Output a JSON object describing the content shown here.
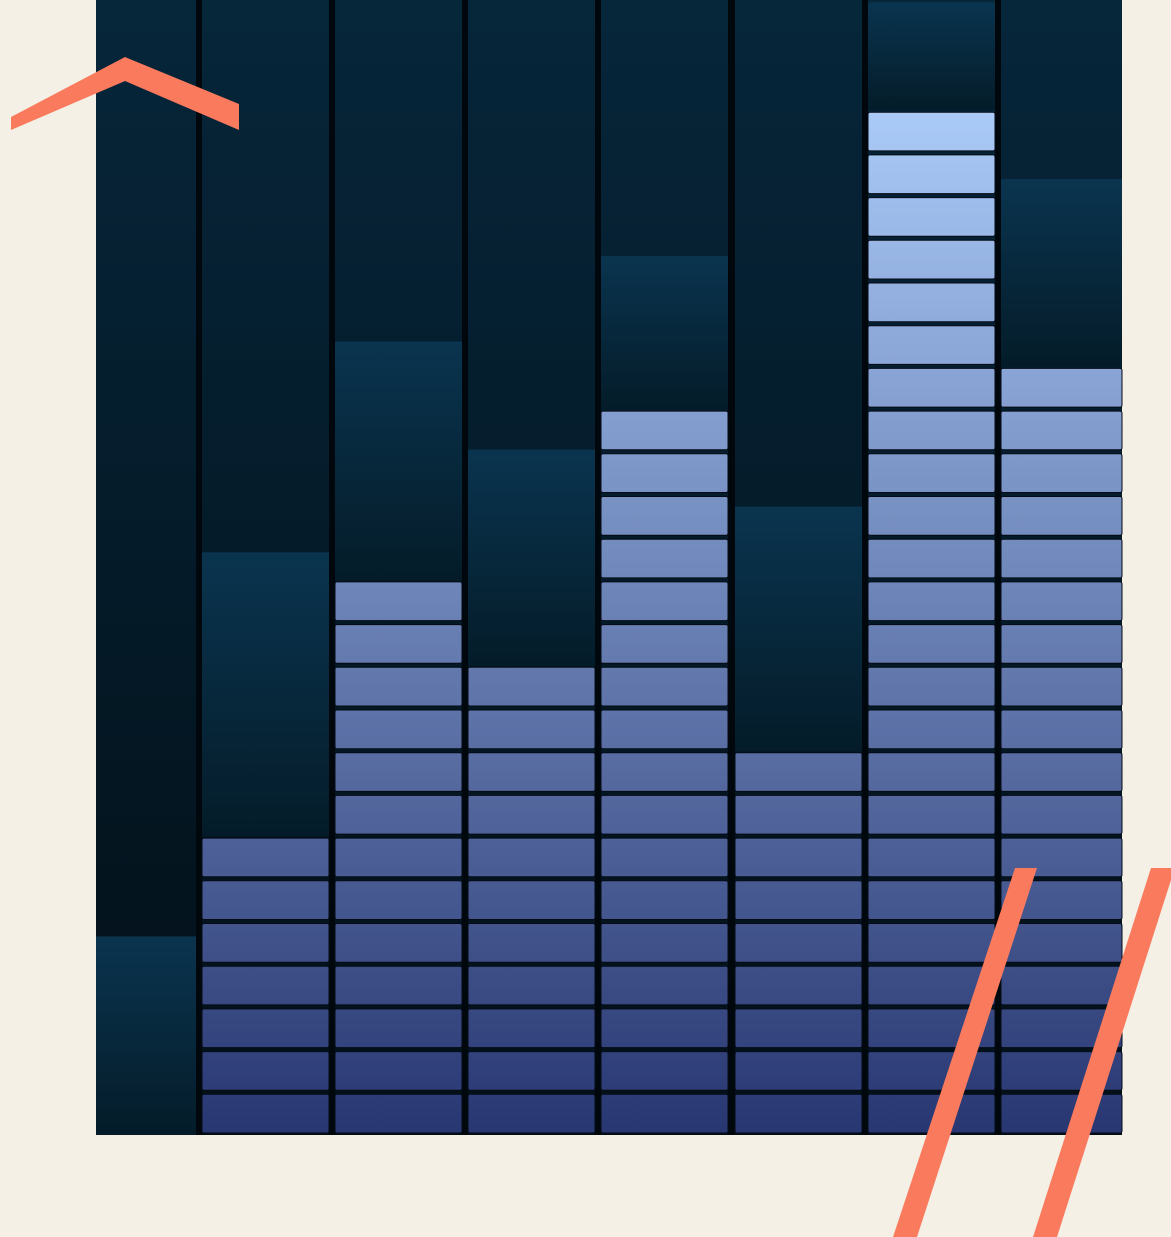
{
  "colors": {
    "background": "#f5f0e6",
    "accent": "#fa7a5e",
    "panel_top": "#06263a",
    "panel_bottom": "#030f17",
    "column_gap": "#01080d",
    "lit_top": "#abcbf8",
    "lit_bottom": "#283671",
    "peak_top": "#0a344f",
    "peak_bottom": "#041c29",
    "segment_line": "#050b16"
  },
  "equalizer": {
    "columns": [
      {
        "level": 0.0,
        "peak_band": 0.175
      },
      {
        "level": 0.27,
        "peak_band": 0.25
      },
      {
        "level": 0.495,
        "peak_band": 0.21
      },
      {
        "level": 0.41,
        "peak_band": 0.19
      },
      {
        "level": 0.64,
        "peak_band": 0.135
      },
      {
        "level": 0.34,
        "peak_band": 0.215
      },
      {
        "level": 0.905,
        "peak_band": 0.095
      },
      {
        "level": 0.68,
        "peak_band": 0.165
      }
    ]
  },
  "decorations": [
    {
      "name": "chevron-up-icon"
    },
    {
      "name": "double-slash-icon"
    }
  ]
}
